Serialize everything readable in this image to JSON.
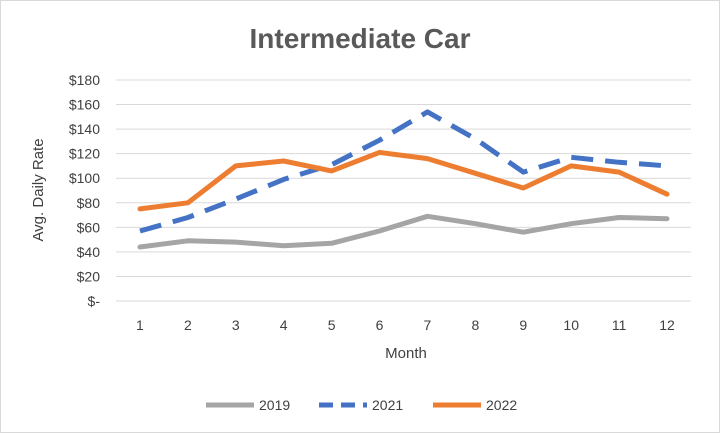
{
  "chart_data": {
    "type": "line",
    "title": "Intermediate Car",
    "xlabel": "Month",
    "ylabel": "Avg.  Daily Rate",
    "categories": [
      "1",
      "2",
      "3",
      "4",
      "5",
      "6",
      "7",
      "8",
      "9",
      "10",
      "11",
      "12"
    ],
    "y_tick_labels": [
      "$-",
      "$20",
      "$40",
      "$60",
      "$80",
      "$100",
      "$120",
      "$140",
      "$160",
      "$180"
    ],
    "ylim": [
      0,
      180
    ],
    "y_tick_step": 20,
    "grid": true,
    "legend_position": "bottom",
    "series": [
      {
        "name": "2019",
        "color": "#a5a5a5",
        "dash": "solid",
        "values": [
          44,
          49,
          48,
          45,
          47,
          57,
          69,
          63,
          56,
          63,
          68,
          67
        ]
      },
      {
        "name": "2021",
        "color": "#4472c4",
        "dash": "dashed",
        "values": [
          57,
          68,
          83,
          99,
          111,
          131,
          154,
          132,
          105,
          117,
          113,
          110
        ]
      },
      {
        "name": "2022",
        "color": "#ed7d31",
        "dash": "solid",
        "values": [
          75,
          80,
          110,
          114,
          106,
          121,
          116,
          104,
          92,
          110,
          105,
          87
        ]
      }
    ]
  }
}
